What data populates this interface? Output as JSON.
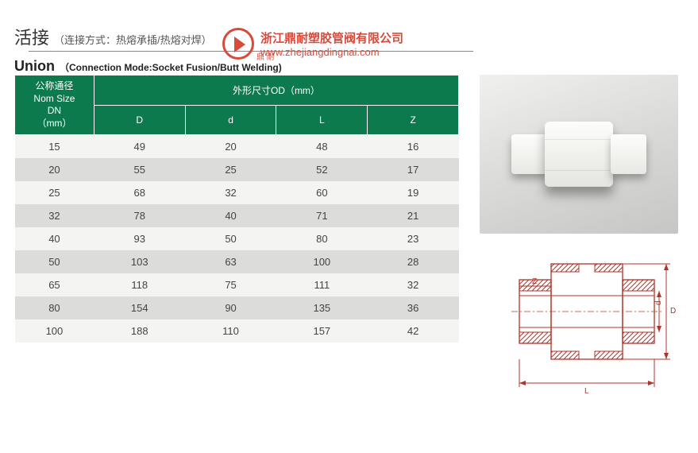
{
  "watermark": {
    "company_cn": "浙江鼎耐塑胶管阀有限公司",
    "url": "www.zhejiangdingnai.com",
    "small": "鼎 耐"
  },
  "title": {
    "cn": "活接",
    "sub_cn": "（连接方式：热熔承插/热熔对焊）",
    "en": "Union",
    "sub_en": "（Connection Mode:Socket Fusion/Butt Welding)"
  },
  "table": {
    "header_nom_l1": "公称通径",
    "header_nom_l2": "Nom Size",
    "header_nom_l3": "DN",
    "header_nom_l4": "（mm）",
    "header_od": "外形尺寸OD（mm）",
    "cols": {
      "D": "D",
      "d": "d",
      "L": "L",
      "Z": "Z"
    },
    "rows": [
      {
        "dn": "15",
        "D": "49",
        "d": "20",
        "L": "48",
        "Z": "16"
      },
      {
        "dn": "20",
        "D": "55",
        "d": "25",
        "L": "52",
        "Z": "17"
      },
      {
        "dn": "25",
        "D": "68",
        "d": "32",
        "L": "60",
        "Z": "19"
      },
      {
        "dn": "32",
        "D": "78",
        "d": "40",
        "L": "71",
        "Z": "21"
      },
      {
        "dn": "40",
        "D": "93",
        "d": "50",
        "L": "80",
        "Z": "23"
      },
      {
        "dn": "50",
        "D": "103",
        "d": "63",
        "L": "100",
        "Z": "28"
      },
      {
        "dn": "65",
        "D": "118",
        "d": "75",
        "L": "111",
        "Z": "32"
      },
      {
        "dn": "80",
        "D": "154",
        "d": "90",
        "L": "135",
        "Z": "36"
      },
      {
        "dn": "100",
        "D": "188",
        "d": "110",
        "L": "157",
        "Z": "42"
      }
    ]
  },
  "diagram_labels": {
    "D": "D",
    "d": "d",
    "L": "L",
    "Z": "Z"
  },
  "colors": {
    "header_bg": "#0d7a4e",
    "row_light": "#f4f4f2",
    "row_dark": "#dcdcda",
    "accent_red": "#d84a3a",
    "diagram_stroke": "#b0342a"
  }
}
